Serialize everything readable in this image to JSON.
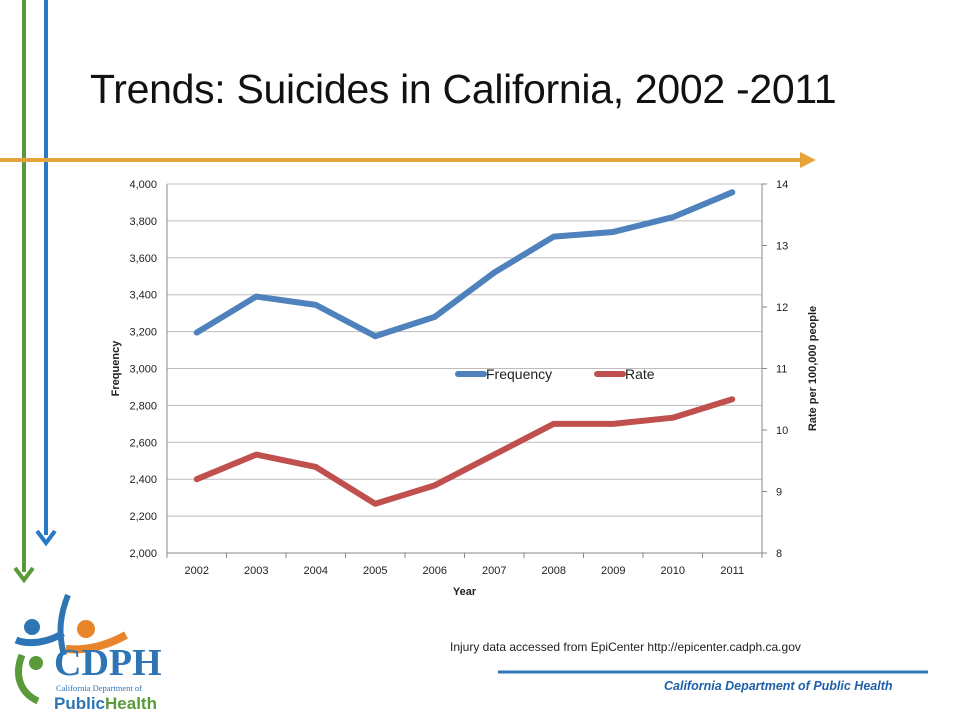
{
  "slide": {
    "title": "Trends: Suicides in California, 2002 -2011",
    "credit": "Injury data accessed from EpiCenter http://epicenter.cadph.ca.gov",
    "footer": "California Department  of Public Health"
  },
  "logo": {
    "acronym": "CDPH",
    "line1": "California Department of",
    "line2_a": "Public",
    "line2_b": "Health"
  },
  "colors": {
    "frequency": "#4f81bd",
    "rate": "#c0504d",
    "arrow_green": "#5a9a3a",
    "arrow_blue": "#2878c8",
    "arrow_orange": "#e8a23a",
    "footer_line": "#2e75b6"
  },
  "chart_data": {
    "type": "line",
    "xlabel": "Year",
    "ylabel": "Frequency",
    "y2label": "Rate per 100,000 people",
    "categories": [
      "2002",
      "2003",
      "2004",
      "2005",
      "2006",
      "2007",
      "2008",
      "2009",
      "2010",
      "2011"
    ],
    "ylim": [
      2000,
      4000
    ],
    "y2lim": [
      8,
      14
    ],
    "yticks": [
      "2,000",
      "2,200",
      "2,400",
      "2,600",
      "2,800",
      "3,000",
      "3,200",
      "3,400",
      "3,600",
      "3,800",
      "4,000"
    ],
    "y2ticks": [
      "8",
      "9",
      "10",
      "11",
      "12",
      "13",
      "14"
    ],
    "grid": true,
    "legend_position": "center-right",
    "series": [
      {
        "name": "Frequency",
        "axis": "left",
        "values": [
          3195,
          3390,
          3345,
          3175,
          3280,
          3520,
          3715,
          3740,
          3820,
          3955
        ]
      },
      {
        "name": "Rate",
        "axis": "right",
        "values": [
          9.2,
          9.6,
          9.4,
          8.8,
          9.1,
          9.6,
          10.1,
          10.1,
          10.2,
          10.5
        ]
      }
    ]
  }
}
